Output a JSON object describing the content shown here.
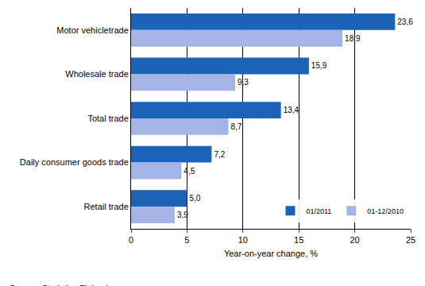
{
  "chart_data": {
    "type": "bar",
    "orientation": "horizontal",
    "categories": [
      "Motor vehicletrade",
      "Wholesale trade",
      "Total trade",
      "Daily consumer goods trade",
      "Retail trade"
    ],
    "series": [
      {
        "name": "01/2011",
        "color": "#1c63b7",
        "values": [
          23.6,
          15.9,
          13.4,
          7.2,
          5.0
        ],
        "value_labels": [
          "23,6",
          "15,9",
          "13,4",
          "7,2",
          "5,0"
        ]
      },
      {
        "name": "01-12/2010",
        "color": "#a4b4e6",
        "values": [
          18.9,
          9.3,
          8.7,
          4.5,
          3.9
        ],
        "value_labels": [
          "18,9",
          "9,3",
          "8,7",
          "4,5",
          "3,9"
        ]
      }
    ],
    "x_label": "Year-on-year change, %",
    "xlim": [
      0,
      25
    ],
    "xticks": [
      0,
      5,
      10,
      15,
      20,
      25
    ],
    "grid": true,
    "legend": "bottom right",
    "data_labels": true,
    "annotation": "Source: Statistics Finland"
  }
}
